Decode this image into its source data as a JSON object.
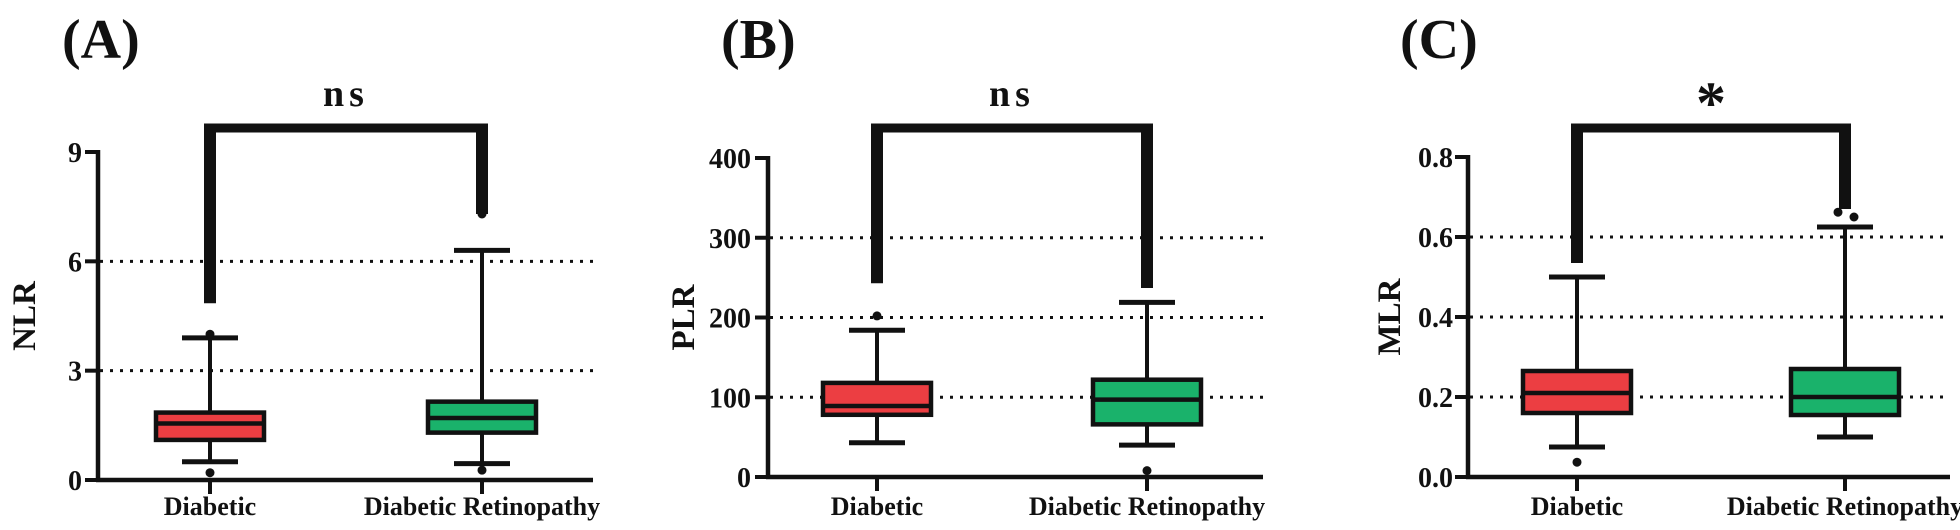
{
  "figure": {
    "background": "#ffffff",
    "ink_color": "#111111",
    "group_colors": {
      "diabetic": "#EC3E42",
      "diabetic_retinopathy": "#1AB26B"
    }
  },
  "chart_data": [
    {
      "type": "box",
      "panel_label": "(A)",
      "ylabel": "NLR",
      "ylim": [
        0,
        9
      ],
      "ytick_values": [
        0,
        3,
        6,
        9
      ],
      "ytick_labels": [
        "0",
        "3",
        "6",
        "9"
      ],
      "gridline_values": [
        3,
        6
      ],
      "grid_style": "dotted",
      "legend": "none",
      "categories": [
        "Diabetic",
        "Diabetic Retinopathy"
      ],
      "significance": {
        "label": "ns",
        "left_drop": 4.85,
        "right_drop": 7.3
      },
      "series": [
        {
          "name": "Diabetic",
          "color": "#EC3E42",
          "whisker_low": 0.5,
          "q1": 1.1,
          "median": 1.55,
          "q3": 1.85,
          "whisker_high": 3.9,
          "outliers": [
            0.2,
            4.0,
            7.3
          ]
        },
        {
          "name": "Diabetic Retinopathy",
          "color": "#1AB26B",
          "whisker_low": 0.45,
          "q1": 1.3,
          "median": 1.7,
          "q3": 2.15,
          "whisker_high": 6.3,
          "outliers": [
            0.27,
            7.3
          ]
        }
      ]
    },
    {
      "type": "box",
      "panel_label": "(B)",
      "ylabel": "PLR",
      "ylim": [
        0,
        400
      ],
      "ytick_values": [
        0,
        100,
        200,
        300,
        400
      ],
      "ytick_labels": [
        "0",
        "100",
        "200",
        "300",
        "400"
      ],
      "gridline_values": [
        100,
        200,
        300
      ],
      "grid_style": "dotted",
      "legend": "none",
      "categories": [
        "Diabetic",
        "Diabetic Retinopathy"
      ],
      "significance": {
        "label": "ns",
        "left_drop": 243,
        "right_drop": 237
      },
      "series": [
        {
          "name": "Diabetic",
          "color": "#EC3E42",
          "whisker_low": 43,
          "q1": 78,
          "median": 89,
          "q3": 118,
          "whisker_high": 184,
          "outliers": [
            202
          ]
        },
        {
          "name": "Diabetic Retinopathy",
          "color": "#1AB26B",
          "whisker_low": 40,
          "q1": 66,
          "median": 97,
          "q3": 122,
          "whisker_high": 219,
          "outliers": [
            8
          ]
        }
      ]
    },
    {
      "type": "box",
      "panel_label": "(C)",
      "ylabel": "MLR",
      "ylim": [
        0,
        0.8
      ],
      "ytick_values": [
        0,
        0.2,
        0.4,
        0.6,
        0.8
      ],
      "ytick_labels": [
        "0.0",
        "0.2",
        "0.4",
        "0.6",
        "0.8"
      ],
      "gridline_values": [
        0.2,
        0.4,
        0.6
      ],
      "grid_style": "dotted",
      "legend": "none",
      "categories": [
        "Diabetic",
        "Diabetic Retinopathy"
      ],
      "significance": {
        "label": "*",
        "left_drop": 0.535,
        "right_drop": 0.67
      },
      "series": [
        {
          "name": "Diabetic",
          "color": "#EC3E42",
          "whisker_low": 0.075,
          "q1": 0.16,
          "median": 0.21,
          "q3": 0.265,
          "whisker_high": 0.5,
          "outliers": [
            0.037,
            0.7
          ]
        },
        {
          "name": "Diabetic Retinopathy",
          "color": "#1AB26B",
          "whisker_low": 0.1,
          "q1": 0.155,
          "median": 0.2,
          "q3": 0.27,
          "whisker_high": 0.625,
          "outliers": [
            0.65,
            0.662
          ]
        }
      ]
    }
  ]
}
